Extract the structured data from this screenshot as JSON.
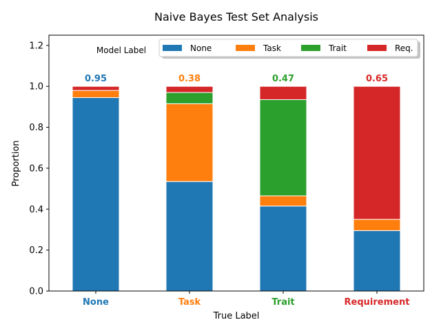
{
  "chart_data": {
    "type": "bar",
    "stacked": true,
    "title": "Naive Bayes Test Set Analysis",
    "xlabel": "True Label",
    "ylabel": "Proportion",
    "ylim": [
      0,
      1.25
    ],
    "yticks": [
      "0.0",
      "0.2",
      "0.4",
      "0.6",
      "0.8",
      "1.0",
      "1.2"
    ],
    "yticks_values": [
      0,
      0.2,
      0.4,
      0.6,
      0.8,
      1.0,
      1.2
    ],
    "grid": false,
    "categories": [
      "None",
      "Task",
      "Trait",
      "Requirement"
    ],
    "category_colors": [
      "#1f77b4",
      "#ff7f0e",
      "#2ca02c",
      "#d62728"
    ],
    "legend": {
      "title": "Model Label",
      "placement": "top-right",
      "entries": [
        "None",
        "Task",
        "Trait",
        "Req."
      ]
    },
    "series": [
      {
        "name": "None",
        "color": "#1f77b4",
        "values": [
          0.945,
          0.535,
          0.415,
          0.295
        ]
      },
      {
        "name": "Task",
        "color": "#ff7f0e",
        "values": [
          0.035,
          0.38,
          0.05,
          0.055
        ]
      },
      {
        "name": "Trait",
        "color": "#2ca02c",
        "values": [
          0.0,
          0.055,
          0.47,
          0.0
        ]
      },
      {
        "name": "Req.",
        "color": "#d62728",
        "values": [
          0.02,
          0.03,
          0.065,
          0.65
        ]
      }
    ],
    "bar_labels": [
      "0.95",
      "0.38",
      "0.47",
      "0.65"
    ]
  }
}
